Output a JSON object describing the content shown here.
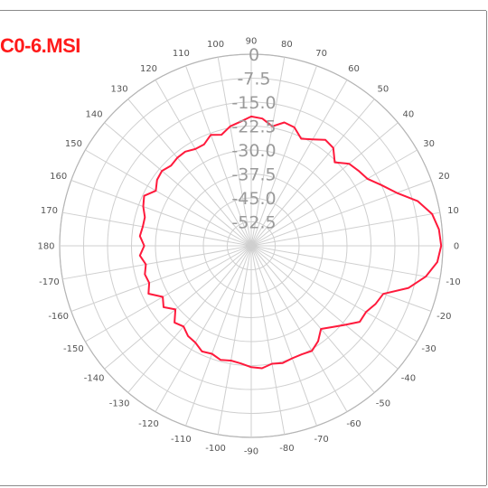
{
  "chart_data": {
    "type": "polar-line",
    "title": "C0-6.MSI",
    "radial_labels": [
      "0",
      "-7.5",
      "-15.0",
      "-22.5",
      "-30.0",
      "-37.5",
      "-45.0",
      "-52.5"
    ],
    "radial_range": [
      -60,
      0
    ],
    "angle_labels": [
      "0",
      "10",
      "20",
      "30",
      "40",
      "50",
      "60",
      "70",
      "80",
      "90",
      "100",
      "110",
      "120",
      "130",
      "140",
      "150",
      "160",
      "170",
      "180",
      "-170",
      "-160",
      "-150",
      "-140",
      "-130",
      "-120",
      "-110",
      "-100",
      "-90",
      "-80",
      "-70",
      "-60",
      "-50",
      "-40",
      "-30",
      "-20",
      "-10"
    ],
    "series": [
      {
        "color": "#ff1a3c",
        "points": [
          [
            0,
            -0.5
          ],
          [
            5,
            -1
          ],
          [
            10,
            -2.5
          ],
          [
            15,
            -6
          ],
          [
            20,
            -11.5
          ],
          [
            25,
            -15
          ],
          [
            30,
            -18
          ],
          [
            35,
            -19
          ],
          [
            40,
            -20
          ],
          [
            45,
            -23
          ],
          [
            50,
            -20
          ],
          [
            55,
            -19.5
          ],
          [
            60,
            -21.5
          ],
          [
            65,
            -23
          ],
          [
            70,
            -20.5
          ],
          [
            75,
            -20
          ],
          [
            80,
            -22
          ],
          [
            85,
            -20
          ],
          [
            90,
            -19.5
          ],
          [
            95,
            -21
          ],
          [
            100,
            -22
          ],
          [
            105,
            -24
          ],
          [
            110,
            -23
          ],
          [
            115,
            -25
          ],
          [
            120,
            -25
          ],
          [
            125,
            -24
          ],
          [
            130,
            -24
          ],
          [
            135,
            -24.5
          ],
          [
            140,
            -23.5
          ],
          [
            145,
            -24
          ],
          [
            150,
            -25.5
          ],
          [
            155,
            -23
          ],
          [
            160,
            -24
          ],
          [
            165,
            -25.5
          ],
          [
            170,
            -25.5
          ],
          [
            175,
            -25
          ],
          [
            180,
            -26.5
          ],
          [
            185,
            -25
          ],
          [
            190,
            -26.5
          ],
          [
            195,
            -25.5
          ],
          [
            200,
            -26
          ],
          [
            205,
            -24.5
          ],
          [
            210,
            -28
          ],
          [
            215,
            -26.5
          ],
          [
            220,
            -29
          ],
          [
            225,
            -26
          ],
          [
            230,
            -27
          ],
          [
            235,
            -25.5
          ],
          [
            240,
            -25
          ],
          [
            245,
            -23.5
          ],
          [
            250,
            -24
          ],
          [
            255,
            -23
          ],
          [
            260,
            -23.5
          ],
          [
            265,
            -23
          ],
          [
            270,
            -22
          ],
          [
            275,
            -21.5
          ],
          [
            280,
            -22.5
          ],
          [
            285,
            -22
          ],
          [
            290,
            -22.5
          ],
          [
            295,
            -22.5
          ],
          [
            300,
            -22
          ],
          [
            305,
            -23.5
          ],
          [
            310,
            -26
          ],
          [
            315,
            -24
          ],
          [
            320,
            -21.5
          ],
          [
            325,
            -18.5
          ],
          [
            330,
            -18.5
          ],
          [
            335,
            -17
          ],
          [
            340,
            -16
          ],
          [
            345,
            -9
          ],
          [
            350,
            -4.5
          ],
          [
            355,
            -1.5
          ]
        ]
      }
    ]
  }
}
